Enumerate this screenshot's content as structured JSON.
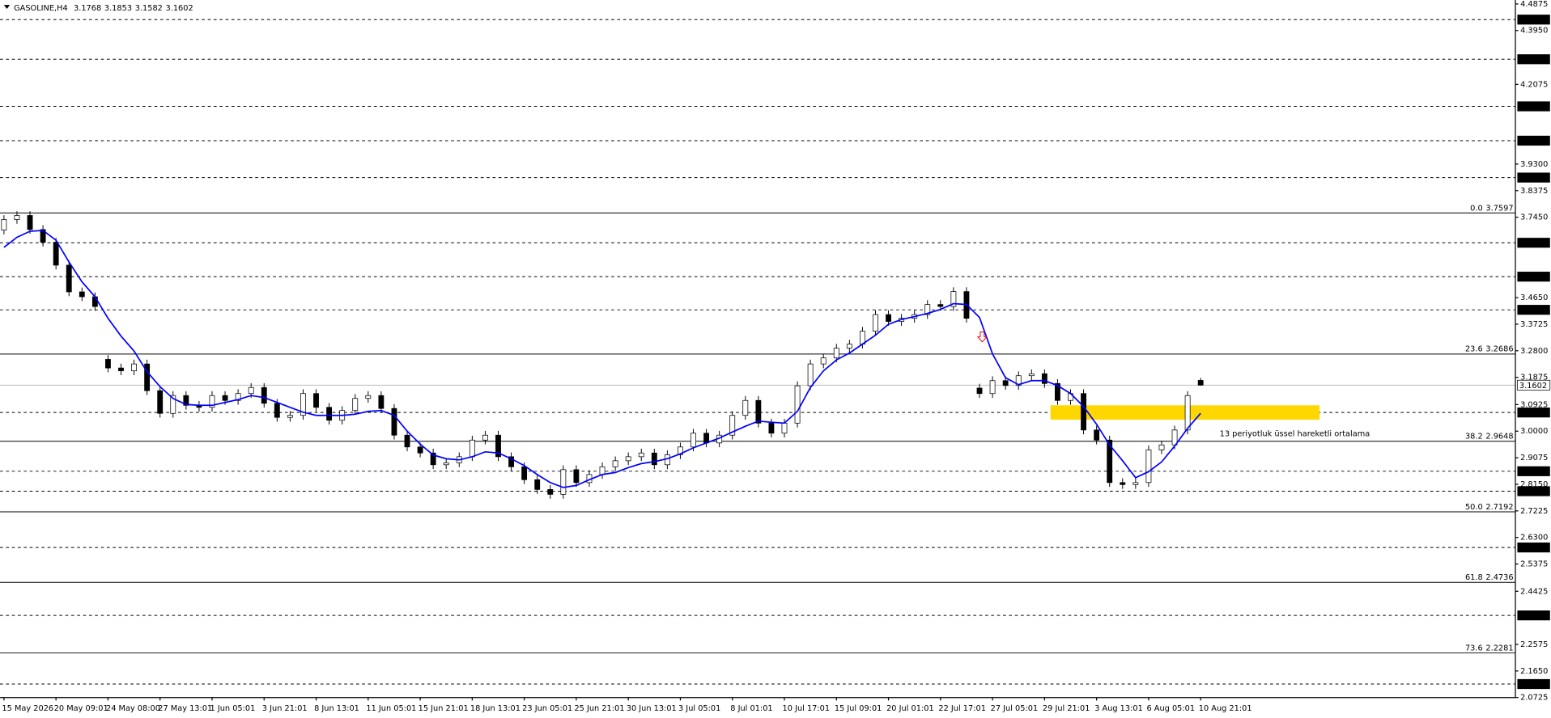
{
  "chart_data": {
    "type": "candlestick",
    "title": "GASOLINE,H4",
    "ylim": [
      2.0725,
      4.4875
    ],
    "yticks": [
      4.4875,
      {
        "value": 4.395,
        "label": "4.3950"
      },
      4.2075,
      {
        "value": 3.93,
        "label": "3.9300"
      },
      3.8375,
      {
        "value": 3.745,
        "label": "3.7450"
      },
      {
        "value": 3.465,
        "label": "3.4650"
      },
      3.3725,
      {
        "value": 3.28,
        "label": "3.2800"
      },
      3.1875,
      3.0925,
      {
        "value": 3,
        "label": "3.0000"
      },
      2.9075,
      {
        "value": 2.815,
        "label": "2.8150"
      },
      2.7225,
      {
        "value": 2.63,
        "label": "2.6300"
      },
      2.5375,
      2.4425,
      2.2575,
      {
        "value": 2.165,
        "label": "2.1650"
      },
      2.0725
    ],
    "grid": false,
    "up_color": "#ffffff",
    "down_color": "#000000",
    "categories": [
      "15 May 2026",
      null,
      null,
      null,
      "20 May 09:01",
      null,
      null,
      null,
      "24 May 08:00",
      null,
      null,
      null,
      "27 May 13:01",
      null,
      null,
      null,
      "1 Jun 05:01",
      null,
      null,
      null,
      "3 Jun 21:01",
      null,
      null,
      null,
      "8 Jun 13:01",
      null,
      null,
      null,
      "11 Jun 05:01",
      null,
      null,
      null,
      "15 Jun 21:01",
      null,
      null,
      null,
      "18 Jun 13:01",
      null,
      null,
      null,
      "23 Jun 05:01",
      null,
      null,
      null,
      "25 Jun 21:01",
      null,
      null,
      null,
      "30 Jun 13:01",
      null,
      null,
      null,
      "3 Jul 05:01",
      null,
      null,
      null,
      "8 Jul 01:01",
      null,
      null,
      null,
      "10 Jul 17:01",
      null,
      null,
      null,
      "15 Jul 09:01",
      null,
      null,
      null,
      "20 Jul 01:01",
      null,
      null,
      null,
      "22 Jul 17:01",
      null,
      null,
      null,
      "27 Jul 05:01",
      null,
      null,
      null,
      "29 Jul 21:01",
      null,
      null,
      null,
      "3 Aug 13:01",
      null,
      null,
      null,
      "6 Aug 05:01",
      null,
      null,
      null,
      "10 Aug 21:01"
    ],
    "open": [
      3.7,
      3.737,
      3.751,
      3.702,
      3.658,
      3.578,
      3.485,
      3.468,
      3.25,
      3.22,
      3.21,
      3.234,
      3.141,
      3.062,
      3.124,
      3.09,
      3.083,
      3.124,
      3.107,
      3.131,
      3.152,
      3.097,
      3.048,
      3.055,
      3.131,
      3.083,
      3.038,
      3.072,
      3.114,
      3.124,
      3.079,
      2.986,
      2.945,
      2.924,
      2.883,
      2.89,
      2.911,
      2.969,
      2.986,
      2.911,
      2.876,
      2.831,
      2.797,
      2.78,
      2.866,
      2.821,
      2.849,
      2.876,
      2.897,
      2.911,
      2.924,
      2.883,
      2.918,
      2.945,
      2.993,
      2.959,
      2.986,
      3.055,
      3.107,
      3.028,
      2.993,
      3.028,
      3.158,
      3.234,
      3.255,
      3.289,
      3.303,
      3.348,
      3.406,
      3.382,
      3.393,
      3.406,
      3.441,
      3.434,
      3.486,
      3.15,
      3.131,
      3.176,
      3.159,
      3.193,
      3.2,
      3.166,
      3.107,
      3.131,
      3.004,
      2.969,
      2.821,
      2.814,
      2.821,
      2.935,
      2.952,
      3.004,
      3.1768
    ],
    "high": [
      3.752,
      3.766,
      3.766,
      3.717,
      3.673,
      3.593,
      3.5,
      3.483,
      3.265,
      3.235,
      3.249,
      3.249,
      3.156,
      3.139,
      3.139,
      3.105,
      3.139,
      3.139,
      3.146,
      3.167,
      3.167,
      3.112,
      3.07,
      3.146,
      3.146,
      3.098,
      3.087,
      3.129,
      3.139,
      3.139,
      3.094,
      3.001,
      2.96,
      2.939,
      2.905,
      2.926,
      2.984,
      3.001,
      3.001,
      2.926,
      2.891,
      2.846,
      2.812,
      2.881,
      2.881,
      2.864,
      2.891,
      2.912,
      2.926,
      2.939,
      2.939,
      2.933,
      2.96,
      3.008,
      3.008,
      3.001,
      3.07,
      3.122,
      3.122,
      3.043,
      3.043,
      3.173,
      3.249,
      3.27,
      3.304,
      3.318,
      3.363,
      3.421,
      3.421,
      3.408,
      3.421,
      3.456,
      3.456,
      3.501,
      3.501,
      3.165,
      3.191,
      3.191,
      3.208,
      3.215,
      3.215,
      3.181,
      3.146,
      3.146,
      3.019,
      2.984,
      2.836,
      2.836,
      2.95,
      2.967,
      3.019,
      3.139,
      3.1853
    ],
    "low": [
      3.685,
      3.722,
      3.687,
      3.643,
      3.563,
      3.47,
      3.453,
      3.419,
      3.205,
      3.195,
      3.195,
      3.126,
      3.047,
      3.047,
      3.075,
      3.068,
      3.068,
      3.092,
      3.092,
      3.116,
      3.082,
      3.033,
      3.033,
      3.04,
      3.068,
      3.023,
      3.023,
      3.057,
      3.099,
      3.064,
      2.971,
      2.93,
      2.909,
      2.868,
      2.868,
      2.875,
      2.896,
      2.954,
      2.896,
      2.861,
      2.816,
      2.782,
      2.765,
      2.765,
      2.806,
      2.806,
      2.834,
      2.861,
      2.882,
      2.896,
      2.868,
      2.868,
      2.903,
      2.93,
      2.944,
      2.944,
      2.971,
      3.04,
      3.013,
      2.978,
      2.978,
      3.013,
      3.143,
      3.219,
      3.24,
      3.274,
      3.288,
      3.333,
      3.367,
      3.367,
      3.378,
      3.391,
      3.419,
      3.419,
      3.378,
      3.116,
      3.116,
      3.144,
      3.144,
      3.178,
      3.151,
      3.092,
      3.092,
      2.989,
      2.954,
      2.806,
      2.799,
      2.799,
      2.806,
      2.92,
      2.937,
      2.989,
      3.1582
    ],
    "close": [
      3.737,
      3.751,
      3.702,
      3.658,
      3.578,
      3.485,
      3.468,
      3.434,
      3.22,
      3.21,
      3.234,
      3.141,
      3.062,
      3.124,
      3.09,
      3.083,
      3.124,
      3.107,
      3.131,
      3.152,
      3.097,
      3.048,
      3.055,
      3.131,
      3.083,
      3.038,
      3.072,
      3.114,
      3.124,
      3.079,
      2.986,
      2.945,
      2.924,
      2.883,
      2.89,
      2.911,
      2.969,
      2.986,
      2.911,
      2.876,
      2.831,
      2.797,
      2.78,
      2.866,
      2.821,
      2.849,
      2.876,
      2.897,
      2.911,
      2.924,
      2.883,
      2.918,
      2.945,
      2.993,
      2.959,
      2.986,
      3.055,
      3.107,
      3.028,
      2.993,
      3.028,
      3.158,
      3.234,
      3.255,
      3.289,
      3.303,
      3.348,
      3.406,
      3.382,
      3.393,
      3.406,
      3.441,
      3.434,
      3.486,
      3.393,
      3.131,
      3.176,
      3.159,
      3.193,
      3.2,
      3.166,
      3.107,
      3.131,
      3.004,
      2.969,
      2.821,
      2.814,
      2.821,
      2.935,
      2.952,
      3.004,
      3.124,
      3.1602
    ],
    "ema": {
      "color": "#0000ff",
      "values": [
        3.64,
        3.675,
        3.696,
        3.699,
        3.665,
        3.589,
        3.52,
        3.468,
        3.393,
        3.331,
        3.279,
        3.207,
        3.155,
        3.114,
        3.093,
        3.09,
        3.09,
        3.1,
        3.11,
        3.124,
        3.117,
        3.1,
        3.083,
        3.066,
        3.055,
        3.055,
        3.055,
        3.059,
        3.069,
        3.072,
        3.055,
        3.0,
        2.955,
        2.917,
        2.904,
        2.9,
        2.911,
        2.928,
        2.924,
        2.904,
        2.88,
        2.849,
        2.821,
        2.804,
        2.811,
        2.831,
        2.849,
        2.856,
        2.873,
        2.887,
        2.894,
        2.904,
        2.921,
        2.942,
        2.959,
        2.976,
        2.997,
        3.017,
        3.035,
        3.031,
        3.028,
        3.069,
        3.152,
        3.21,
        3.248,
        3.272,
        3.303,
        3.334,
        3.372,
        3.389,
        3.399,
        3.41,
        3.424,
        3.444,
        3.441,
        3.396,
        3.269,
        3.186,
        3.162,
        3.176,
        3.176,
        3.159,
        3.131,
        3.086,
        3.024,
        2.952,
        2.897,
        2.838,
        2.859,
        2.893,
        2.948,
        3.01,
        3.062
      ]
    },
    "levels": [
      {
        "value": 4.433,
        "label": "4.4330"
      },
      {
        "value": 4.295,
        "label": "4.2950"
      },
      {
        "value": 4.131,
        "label": "4.1310"
      },
      4.0115,
      {
        "value": 3.883,
        "label": "3.8830"
      },
      {
        "value": 3.656,
        "label": "3.6560"
      },
      {
        "value": 3.538,
        "label": "3.5380"
      },
      3.4225,
      {
        "value": 3.065,
        "label": "3.0650"
      },
      2.8605,
      {
        "value": 2.791,
        "label": "2.7910"
      },
      {
        "value": 2.595,
        "label": "2.5950"
      },
      2.3585,
      2.1195
    ],
    "fibonacci": [
      {
        "level": "0.0",
        "value": 3.7597
      },
      {
        "level": "23.6",
        "value": 3.2686
      },
      {
        "level": "38.2",
        "value": 2.9648
      },
      {
        "level": "50.0",
        "value": 2.7192
      },
      {
        "level": "61.8",
        "value": 2.4736
      },
      {
        "level": "73.6",
        "value": 2.2281
      }
    ],
    "zone": {
      "color": "#ffd700",
      "values": [
        3.04,
        3.09
      ]
    },
    "annotation": "13 periyotluk üssel hareketli ortalama"
  }
}
